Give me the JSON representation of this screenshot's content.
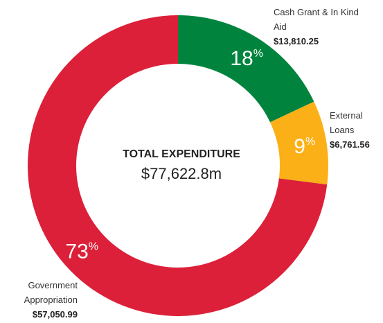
{
  "chart_data": {
    "type": "pie",
    "categories": [
      "Cash Grant & In Kind Aid",
      "External Loans",
      "Government Appropriation"
    ],
    "values": [
      18,
      9,
      73
    ],
    "value_labels": [
      "18%",
      "9%",
      "73%"
    ],
    "amount_labels": [
      "$13,810.25",
      "$6,761.56",
      "$57,050.99"
    ],
    "colors": [
      "#00843d",
      "#fbb017",
      "#dc2039"
    ],
    "total_label": "TOTAL EXPENDITURE",
    "total_value": "$77,622.8m"
  }
}
